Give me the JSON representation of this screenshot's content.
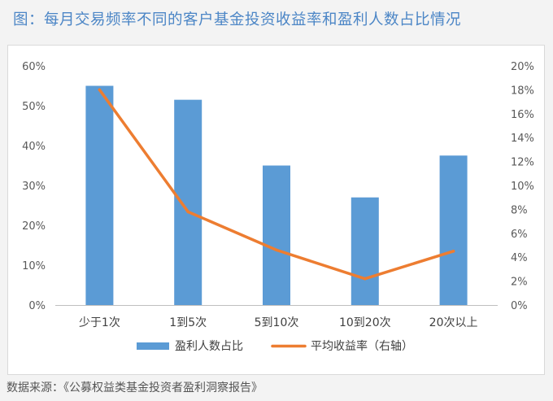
{
  "page": {
    "title": "图：每月交易频率不同的客户基金投资收益率和盈利人数占比情况",
    "source": "数据来源：《公募权益类基金投资者盈利洞察报告》"
  },
  "chart_data": {
    "type": "bar",
    "categories": [
      "少于1次",
      "1到5次",
      "5到10次",
      "10到20次",
      "20次以上"
    ],
    "series": [
      {
        "name": "盈利人数占比",
        "type": "bar",
        "axis": "left",
        "values": [
          55,
          51.5,
          35,
          27,
          37.5
        ],
        "color": "#5b9bd5"
      },
      {
        "name": "平均收益率（右轴）",
        "type": "line",
        "axis": "right",
        "values": [
          18.0,
          7.8,
          4.6,
          2.2,
          4.5
        ],
        "color": "#ed7d31"
      }
    ],
    "y_left": {
      "min": 0,
      "max": 60,
      "step": 10,
      "ticks": [
        "0%",
        "10%",
        "20%",
        "30%",
        "40%",
        "50%",
        "60%"
      ]
    },
    "y_right": {
      "min": 0,
      "max": 20,
      "step": 2,
      "ticks": [
        "0%",
        "2%",
        "4%",
        "6%",
        "8%",
        "10%",
        "12%",
        "14%",
        "16%",
        "18%",
        "20%"
      ]
    },
    "grid": false,
    "legend_position": "bottom"
  }
}
